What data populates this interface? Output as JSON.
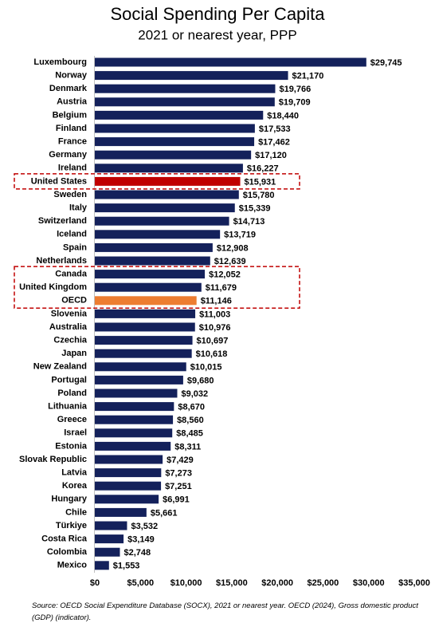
{
  "chart_data": {
    "type": "bar",
    "orientation": "horizontal",
    "title": "Social Spending Per Capita",
    "subtitle": "2021 or nearest year, PPP",
    "categories": [
      "Luxembourg",
      "Norway",
      "Denmark",
      "Austria",
      "Belgium",
      "Finland",
      "France",
      "Germany",
      "Ireland",
      "United States",
      "Sweden",
      "Italy",
      "Switzerland",
      "Iceland",
      "Spain",
      "Netherlands",
      "Canada",
      "United Kingdom",
      "OECD",
      "Slovenia",
      "Australia",
      "Czechia",
      "Japan",
      "New Zealand",
      "Portugal",
      "Poland",
      "Lithuania",
      "Greece",
      "Israel",
      "Estonia",
      "Slovak Republic",
      "Latvia",
      "Korea",
      "Hungary",
      "Chile",
      "Türkiye",
      "Costa Rica",
      "Colombia",
      "Mexico"
    ],
    "values": [
      29745,
      21170,
      19766,
      19709,
      18440,
      17533,
      17462,
      17120,
      16227,
      15931,
      15780,
      15339,
      14713,
      13719,
      12908,
      12639,
      12052,
      11679,
      11146,
      11003,
      10976,
      10697,
      10618,
      10015,
      9680,
      9032,
      8670,
      8560,
      8485,
      8311,
      7429,
      7273,
      7251,
      6991,
      5661,
      3532,
      3149,
      2748,
      1553
    ],
    "value_labels": [
      "$29,745",
      "$21,170",
      "$19,766",
      "$19,709",
      "$18,440",
      "$17,533",
      "$17,462",
      "$17,120",
      "$16,227",
      "$15,931",
      "$15,780",
      "$15,339",
      "$14,713",
      "$13,719",
      "$12,908",
      "$12,639",
      "$12,052",
      "$11,679",
      "$11,146",
      "$11,003",
      "$10,976",
      "$10,697",
      "$10,618",
      "$10,015",
      "$9,680",
      "$9,032",
      "$8,670",
      "$8,560",
      "$8,485",
      "$8,311",
      "$7,429",
      "$7,273",
      "$7,251",
      "$6,991",
      "$5,661",
      "$3,532",
      "$3,149",
      "$2,748",
      "$1,553"
    ],
    "colors": [
      "#14215b",
      "#14215b",
      "#14215b",
      "#14215b",
      "#14215b",
      "#14215b",
      "#14215b",
      "#14215b",
      "#14215b",
      "#c00000",
      "#14215b",
      "#14215b",
      "#14215b",
      "#14215b",
      "#14215b",
      "#14215b",
      "#14215b",
      "#14215b",
      "#ed7d31",
      "#14215b",
      "#14215b",
      "#14215b",
      "#14215b",
      "#14215b",
      "#14215b",
      "#14215b",
      "#14215b",
      "#14215b",
      "#14215b",
      "#14215b",
      "#14215b",
      "#14215b",
      "#14215b",
      "#14215b",
      "#14215b",
      "#14215b",
      "#14215b",
      "#14215b",
      "#14215b"
    ],
    "xlim": [
      0,
      35000
    ],
    "xticks": [
      {
        "value": 0,
        "label": "$0"
      },
      {
        "value": 5000,
        "label": "$5,000"
      },
      {
        "value": 10000,
        "label": "$10,000"
      },
      {
        "value": 15000,
        "label": "$15,000"
      },
      {
        "value": 20000,
        "label": "$20,000"
      },
      {
        "value": 25000,
        "label": "$25,000"
      },
      {
        "value": 30000,
        "label": "$30,000"
      },
      {
        "value": 35000,
        "label": "$35,000"
      }
    ],
    "grid": false,
    "source": "Source: OECD Social Expenditure Database (SOCX), 2021 or nearest year. OECD (2024), Gross domestic product (GDP) (indicator)."
  }
}
